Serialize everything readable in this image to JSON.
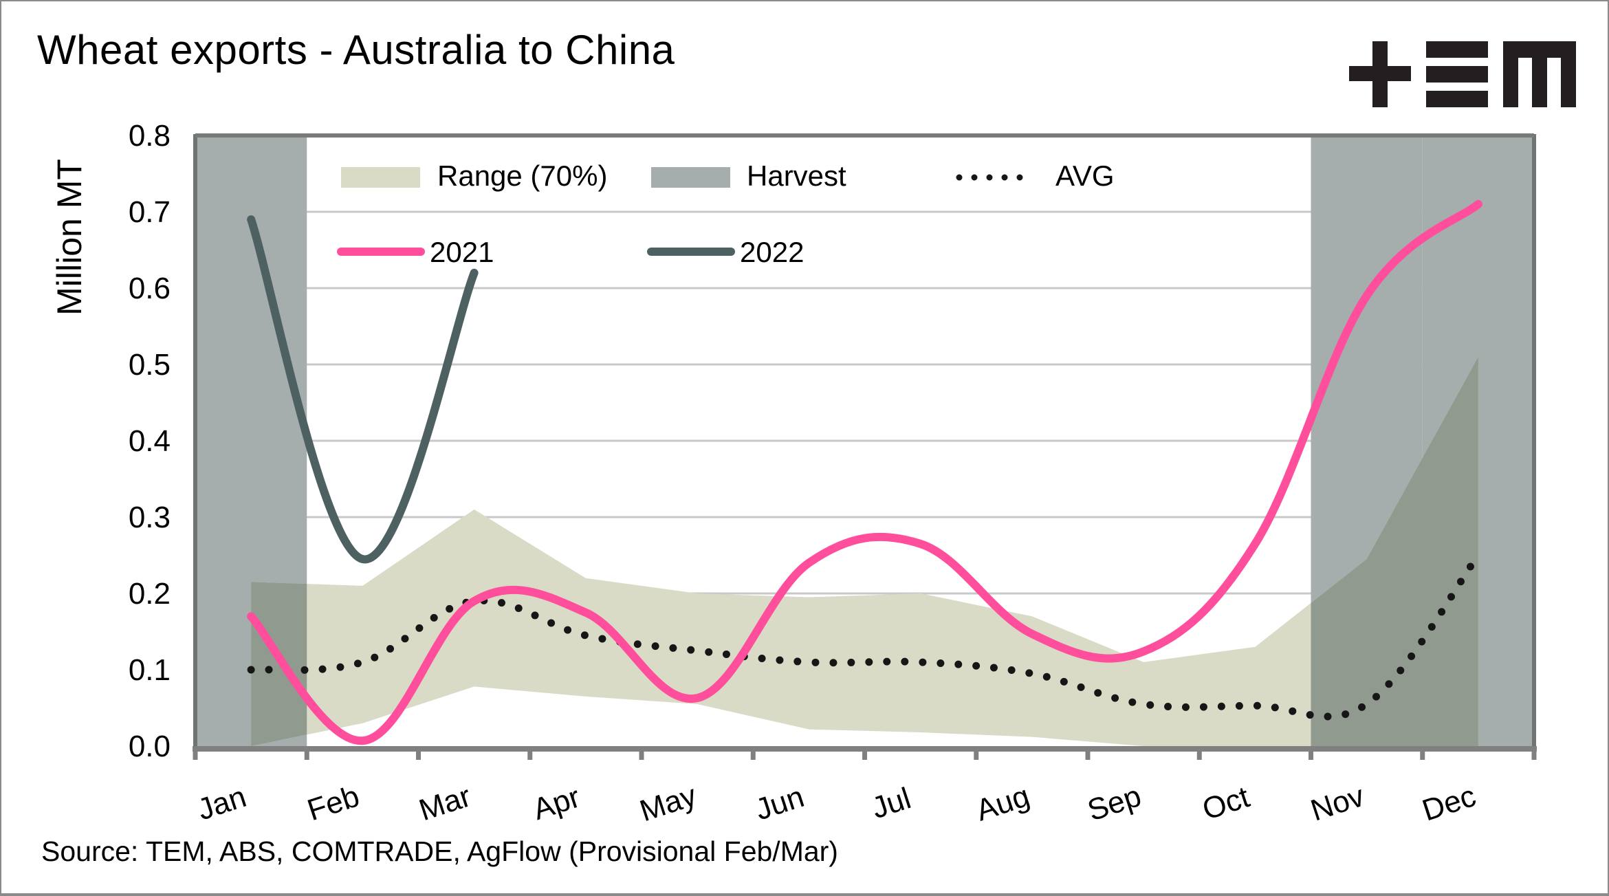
{
  "title": "Wheat exports - Australia to China",
  "logo": "TEM",
  "logo_icon": "tem-logo-icon",
  "source": "Source: TEM, ABS, COMTRADE, AgFlow (Provisional Feb/Mar)",
  "colors": {
    "range": "#d9dbc6",
    "harvest": "#a5adad",
    "harvest_overlap": "#919a8f",
    "avg": "#161616",
    "y2021": "#ff4e9c",
    "y2022": "#4d6062",
    "grid": "#c8c8c8",
    "axis": "#808080"
  },
  "chart_data": {
    "type": "line",
    "title": "Wheat exports - Australia to China",
    "xlabel": "",
    "ylabel": "Million MT",
    "ylim": [
      0,
      0.8
    ],
    "yticks": [
      "0.0",
      "0.1",
      "0.2",
      "0.3",
      "0.4",
      "0.5",
      "0.6",
      "0.7",
      "0.8"
    ],
    "grid": true,
    "legend_position": "top-left (inside plot)",
    "categories": [
      "Jan",
      "Feb",
      "Mar",
      "Apr",
      "May",
      "Jun",
      "Jul",
      "Aug",
      "Sep",
      "Oct",
      "Nov",
      "Dec"
    ],
    "harvest_months": [
      "Jan",
      "Nov",
      "Dec"
    ],
    "legend": [
      {
        "key": "range",
        "label": "Range (70%)",
        "kind": "area"
      },
      {
        "key": "harvest",
        "label": "Harvest",
        "kind": "band"
      },
      {
        "key": "avg",
        "label": "AVG",
        "kind": "dotted"
      },
      {
        "key": "y2021",
        "label": "2021",
        "kind": "line"
      },
      {
        "key": "y2022",
        "label": "2022",
        "kind": "line"
      }
    ],
    "range": {
      "name": "Range (70%)",
      "upper": [
        0.215,
        0.21,
        0.31,
        0.22,
        0.2,
        0.195,
        0.2,
        0.17,
        0.11,
        0.13,
        0.245,
        0.51
      ],
      "lower": [
        0.0,
        0.03,
        0.078,
        0.065,
        0.055,
        0.022,
        0.018,
        0.012,
        0.0,
        0.0,
        0.0,
        0.0
      ]
    },
    "series": [
      {
        "name": "AVG",
        "key": "avg",
        "values": [
          0.1,
          0.11,
          0.19,
          0.145,
          0.125,
          0.11,
          0.11,
          0.095,
          0.055,
          0.053,
          0.055,
          0.25
        ]
      },
      {
        "name": "2021",
        "key": "y2021",
        "values": [
          0.17,
          0.007,
          0.19,
          0.175,
          0.063,
          0.24,
          0.265,
          0.147,
          0.124,
          0.265,
          0.59,
          0.71
        ]
      },
      {
        "name": "2022",
        "key": "y2022",
        "values": [
          0.69,
          0.245,
          0.62
        ]
      }
    ]
  }
}
